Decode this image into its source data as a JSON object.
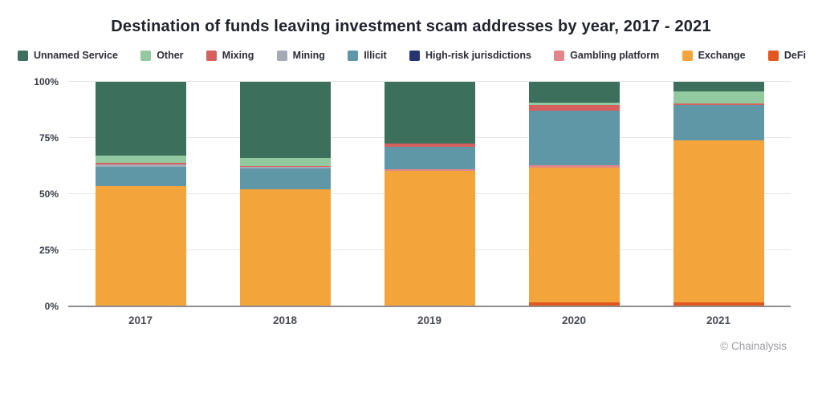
{
  "chart_data": {
    "type": "bar",
    "variant": "stacked-percent",
    "title": "Destination of funds leaving investment scam addresses by year, 2017 - 2021",
    "categories": [
      "2017",
      "2018",
      "2019",
      "2020",
      "2021"
    ],
    "series": [
      {
        "name": "Unnamed Service",
        "color": "#3d6f5d",
        "values": [
          33.0,
          33.9,
          27.5,
          9.2,
          4.3
        ]
      },
      {
        "name": "Other",
        "color": "#93c99e",
        "values": [
          3.0,
          3.6,
          0,
          1.2,
          5.4
        ]
      },
      {
        "name": "Mixing",
        "color": "#d6605e",
        "values": [
          0.7,
          0.4,
          1.5,
          2.4,
          0.7
        ]
      },
      {
        "name": "Mining",
        "color": "#a4abb7",
        "values": [
          1.0,
          0.8,
          0,
          0,
          0
        ]
      },
      {
        "name": "Illicit",
        "color": "#5f97a7",
        "values": [
          8.8,
          9.3,
          10.0,
          24.4,
          15.8
        ]
      },
      {
        "name": "High-risk jurisdictions",
        "color": "#27356e",
        "values": [
          0,
          0,
          0,
          0,
          0
        ]
      },
      {
        "name": "Gambling platform",
        "color": "#e2868c",
        "values": [
          0,
          0,
          0.5,
          1.0,
          0
        ]
      },
      {
        "name": "Exchange",
        "color": "#f3a53c",
        "values": [
          53.5,
          51.5,
          60.5,
          60.0,
          72.0
        ]
      },
      {
        "name": "DeFi",
        "color": "#e2561f",
        "values": [
          0,
          0.5,
          0,
          1.8,
          1.8
        ]
      }
    ],
    "stack_order": "bottom-to-top is reverse of legend order (DeFi at bottom, Unnamed Service at top)",
    "y_ticks": [
      {
        "label": "0%",
        "value": 0
      },
      {
        "label": "25%",
        "value": 25
      },
      {
        "label": "50%",
        "value": 50
      },
      {
        "label": "75%",
        "value": 75
      },
      {
        "label": "100%",
        "value": 100
      }
    ],
    "ylim": [
      0,
      100
    ],
    "xlabel": "",
    "ylabel": "",
    "grid": "horizontal",
    "legend_position": "top",
    "credit": "© Chainalysis"
  }
}
